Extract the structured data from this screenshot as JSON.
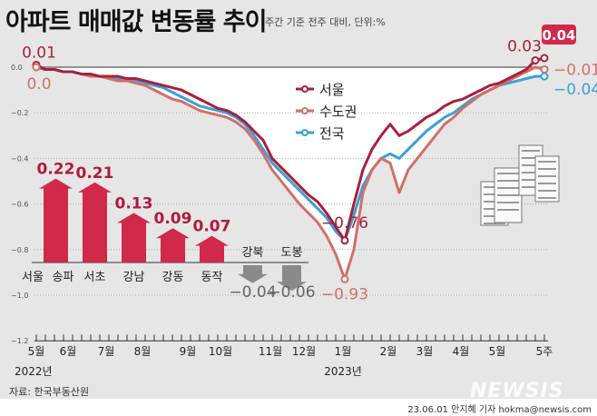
{
  "title": "아파트 매매값 변동률 추이",
  "subtitle": "주간 기준 전주 대비, 단위:%",
  "source": "자료: 한국부동산원",
  "credit": "23.06.01 안지혜 기자 hokma@newsis.com",
  "logo": "NEWSIS",
  "chart_data": [
    {
      "type": "line",
      "ylim": [
        -1.2,
        0.0
      ],
      "yticks": [
        "0.0",
        "-0.2",
        "-0.4",
        "-0.6",
        "-0.8",
        "-1.0",
        "-1.2"
      ],
      "xticks": [
        "5월",
        "6월",
        "7월",
        "8월",
        "9월",
        "10월",
        "11월",
        "12월",
        "1월",
        "2월",
        "3월",
        "4월",
        "5월",
        "5주"
      ],
      "year_labels": [
        "2022년",
        "2023년"
      ],
      "series": [
        {
          "name": "서울",
          "color": "#a8203a",
          "values": [
            0.01,
            -0.01,
            -0.01,
            -0.02,
            -0.02,
            -0.03,
            -0.03,
            -0.04,
            -0.04,
            -0.04,
            -0.05,
            -0.05,
            -0.06,
            -0.07,
            -0.08,
            -0.09,
            -0.1,
            -0.12,
            -0.14,
            -0.16,
            -0.18,
            -0.19,
            -0.21,
            -0.24,
            -0.28,
            -0.32,
            -0.4,
            -0.44,
            -0.48,
            -0.52,
            -0.56,
            -0.59,
            -0.64,
            -0.7,
            -0.76,
            -0.6,
            -0.45,
            -0.36,
            -0.3,
            -0.25,
            -0.3,
            -0.28,
            -0.25,
            -0.22,
            -0.2,
            -0.17,
            -0.15,
            -0.14,
            -0.12,
            -0.1,
            -0.08,
            -0.07,
            -0.05,
            -0.03,
            -0.01,
            0.03,
            0.04
          ]
        },
        {
          "name": "수도권",
          "color": "#d0706a",
          "values": [
            0.0,
            -0.01,
            -0.01,
            -0.02,
            -0.02,
            -0.03,
            -0.04,
            -0.04,
            -0.05,
            -0.06,
            -0.06,
            -0.07,
            -0.08,
            -0.1,
            -0.12,
            -0.14,
            -0.15,
            -0.17,
            -0.19,
            -0.2,
            -0.21,
            -0.22,
            -0.24,
            -0.27,
            -0.32,
            -0.38,
            -0.45,
            -0.5,
            -0.55,
            -0.6,
            -0.64,
            -0.68,
            -0.74,
            -0.82,
            -0.93,
            -0.8,
            -0.55,
            -0.45,
            -0.4,
            -0.42,
            -0.55,
            -0.45,
            -0.4,
            -0.35,
            -0.3,
            -0.25,
            -0.22,
            -0.18,
            -0.15,
            -0.12,
            -0.1,
            -0.08,
            -0.06,
            -0.04,
            -0.02,
            0.0,
            -0.01
          ]
        },
        {
          "name": "전국",
          "color": "#3aa0d8",
          "values": [
            0.0,
            -0.01,
            -0.01,
            -0.02,
            -0.02,
            -0.03,
            -0.03,
            -0.04,
            -0.04,
            -0.05,
            -0.05,
            -0.06,
            -0.07,
            -0.08,
            -0.09,
            -0.11,
            -0.13,
            -0.15,
            -0.17,
            -0.18,
            -0.19,
            -0.2,
            -0.22,
            -0.25,
            -0.3,
            -0.36,
            -0.42,
            -0.46,
            -0.5,
            -0.54,
            -0.58,
            -0.62,
            -0.66,
            -0.72,
            -0.76,
            -0.65,
            -0.52,
            -0.45,
            -0.4,
            -0.38,
            -0.4,
            -0.36,
            -0.32,
            -0.28,
            -0.25,
            -0.22,
            -0.2,
            -0.17,
            -0.14,
            -0.12,
            -0.1,
            -0.08,
            -0.07,
            -0.06,
            -0.05,
            -0.04,
            -0.04
          ]
        }
      ],
      "annotations": [
        {
          "text": "0.01",
          "series": "서울",
          "point": "first"
        },
        {
          "text": "0.0",
          "series": "수도권",
          "point": "first"
        },
        {
          "text": "-0.76",
          "series": "서울",
          "point": "min"
        },
        {
          "text": "-0.93",
          "series": "수도권",
          "point": "min"
        },
        {
          "text": "0.03",
          "series": "서울",
          "point": "second-last"
        },
        {
          "text": "0.04",
          "series": "서울",
          "point": "last",
          "highlight": true
        },
        {
          "text": "-0.01",
          "series": "수도권",
          "point": "last"
        },
        {
          "text": "-0.04",
          "series": "전국",
          "point": "last"
        }
      ]
    },
    {
      "type": "bar",
      "group_label": "서울",
      "categories": [
        "송파",
        "서초",
        "강남",
        "강동",
        "동작",
        "강북",
        "도봉"
      ],
      "values": [
        0.22,
        0.21,
        0.13,
        0.09,
        0.07,
        -0.04,
        -0.06
      ],
      "labels": [
        "0.22",
        "0.21",
        "0.13",
        "0.09",
        "0.07",
        "−0.04",
        "−0.06"
      ],
      "colors": {
        "up": "#d0294a",
        "down": "#8a8a8a"
      }
    }
  ]
}
